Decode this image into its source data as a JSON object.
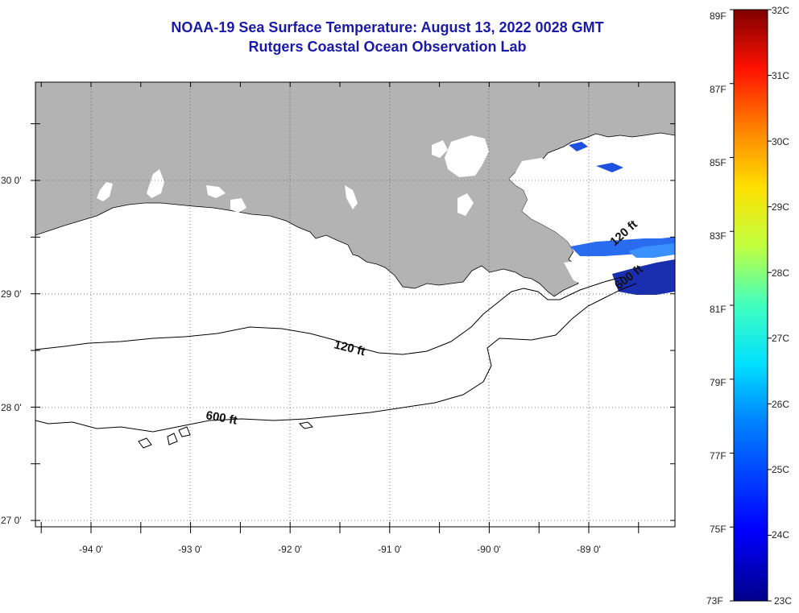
{
  "title": {
    "line1": "NOAA-19 Sea Surface Temperature:  August 13, 2022 0028 GMT",
    "line2": "Rutgers Coastal Ocean Observation Lab"
  },
  "map": {
    "lat_labels": [
      "30 0'",
      "29 0'",
      "28 0'",
      "27 0'"
    ],
    "lon_labels": [
      "-94 0'",
      "-93 0'",
      "-92 0'",
      "-91 0'",
      "-90 0'",
      "-89 0'"
    ],
    "contours": [
      {
        "label": "120 ft"
      },
      {
        "label": "600 ft"
      },
      {
        "label": "120 ft"
      },
      {
        "label": "600 ft"
      }
    ],
    "colors": {
      "land": "#b3b3b3",
      "cloud": "#ffffff",
      "water": "#ffffff",
      "frame": "#000000"
    }
  },
  "colorbar": {
    "fahrenheit_labels": [
      "89F",
      "87F",
      "85F",
      "83F",
      "81F",
      "79F",
      "77F",
      "75F",
      "73F"
    ],
    "celsius_labels": [
      "32C",
      "31C",
      "30C",
      "29C",
      "28C",
      "27C",
      "26C",
      "25C",
      "24C",
      "23C"
    ],
    "range_c": [
      23,
      32
    ],
    "range_f": [
      73,
      89
    ]
  }
}
